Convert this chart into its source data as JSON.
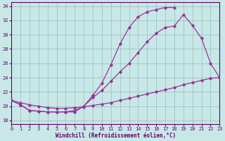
{
  "background_color": "#c8e8e8",
  "grid_color": "#9bbaba",
  "line_color": "#993399",
  "xlim": [
    0,
    23
  ],
  "ylim": [
    17.5,
    34.5
  ],
  "yticks": [
    18,
    20,
    22,
    24,
    26,
    28,
    30,
    32,
    34
  ],
  "xticks": [
    0,
    1,
    2,
    3,
    4,
    5,
    6,
    7,
    8,
    9,
    10,
    11,
    12,
    13,
    14,
    15,
    16,
    17,
    18,
    19,
    20,
    21,
    22,
    23
  ],
  "xlabel": "Windchill (Refroidissement éolien,°C)",
  "curve1": {
    "x": [
      0,
      1,
      2,
      3,
      4,
      5,
      6,
      7,
      8,
      9,
      10,
      11,
      12,
      13,
      14,
      15,
      16,
      17,
      18
    ],
    "y": [
      20.8,
      20.2,
      19.4,
      19.3,
      19.2,
      19.2,
      19.2,
      19.2,
      20.0,
      21.5,
      23.2,
      25.8,
      28.7,
      31.0,
      32.5,
      33.2,
      33.5,
      33.8,
      33.8
    ]
  },
  "curve2": {
    "x": [
      0,
      1,
      2,
      3,
      4,
      5,
      6,
      7,
      8,
      9,
      10,
      11,
      12,
      13,
      14,
      15,
      16,
      17,
      18,
      19,
      20,
      21,
      22,
      23
    ],
    "y": [
      20.8,
      20.2,
      19.4,
      19.3,
      19.2,
      19.2,
      19.2,
      19.4,
      20.0,
      21.2,
      22.2,
      23.5,
      24.8,
      26.0,
      27.5,
      29.0,
      30.2,
      31.0,
      31.2,
      32.8,
      31.3,
      29.5,
      26.0,
      24.0
    ]
  },
  "curve3": {
    "x": [
      0,
      1,
      2,
      3,
      4,
      5,
      6,
      7,
      8,
      9,
      10,
      11,
      12,
      13,
      14,
      15,
      16,
      17,
      18,
      19,
      20,
      21,
      22,
      23
    ],
    "y": [
      20.8,
      20.5,
      20.2,
      20.0,
      19.8,
      19.7,
      19.7,
      19.8,
      19.9,
      20.1,
      20.3,
      20.5,
      20.8,
      21.1,
      21.4,
      21.7,
      22.0,
      22.3,
      22.6,
      23.0,
      23.3,
      23.6,
      23.9,
      24.0
    ]
  }
}
